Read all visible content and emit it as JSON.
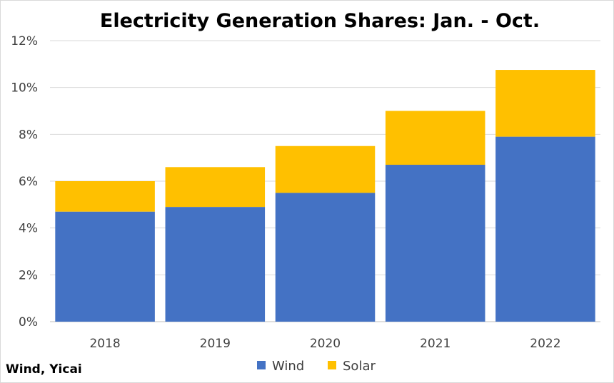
{
  "chart_data": {
    "type": "bar",
    "stacked": true,
    "title": "Electricity Generation Shares: Jan. - Oct.",
    "categories": [
      "2018",
      "2019",
      "2020",
      "2021",
      "2022"
    ],
    "series": [
      {
        "name": "Wind",
        "color": "#4472c4",
        "values": [
          4.7,
          4.9,
          5.5,
          6.7,
          7.9
        ]
      },
      {
        "name": "Solar",
        "color": "#ffc000",
        "values": [
          1.3,
          1.7,
          2.0,
          2.3,
          2.85
        ]
      }
    ],
    "ylim": [
      0,
      12
    ],
    "yticks": [
      "0%",
      "2%",
      "4%",
      "6%",
      "8%",
      "10%",
      "12%"
    ],
    "ytick_values": [
      0,
      2,
      4,
      6,
      8,
      10,
      12
    ],
    "grid": true,
    "legend": "bottom",
    "source": "Wind, Yicai"
  }
}
